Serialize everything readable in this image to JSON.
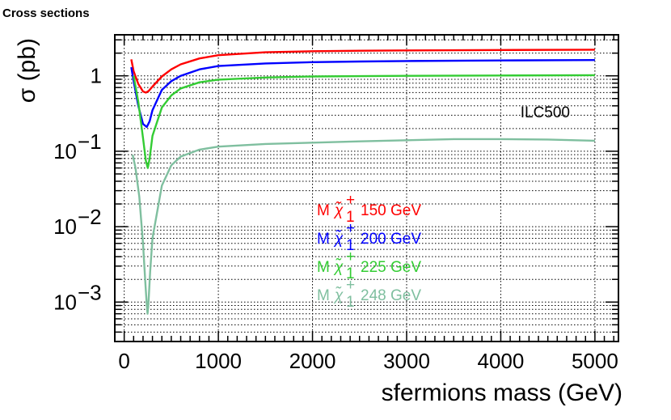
{
  "page": {
    "title": "Cross sections"
  },
  "chart_data": {
    "type": "line",
    "title": "Cross sections",
    "xlabel": "sfermions mass (GeV)",
    "ylabel": "σ (pb)",
    "xlim": [
      -100,
      5250
    ],
    "ylim": [
      0.0003,
      3.5
    ],
    "yscale": "log",
    "grid": true,
    "annotation": "ILC500",
    "x_ticks": [
      0,
      1000,
      2000,
      3000,
      4000,
      5000
    ],
    "y_ticks": [
      {
        "value": 1,
        "base": "1",
        "exp": ""
      },
      {
        "value": 0.1,
        "base": "10",
        "exp": "−1"
      },
      {
        "value": 0.01,
        "base": "10",
        "exp": "−2"
      },
      {
        "value": 0.001,
        "base": "10",
        "exp": "−3"
      }
    ],
    "legend_prefix": "M",
    "legend_symbol": "χ̃",
    "legend_sub": "1",
    "legend_sup": "+",
    "series": [
      {
        "name": "150 GeV",
        "color": "#ff0000",
        "x": [
          75,
          100,
          150,
          200,
          230,
          260,
          300,
          400,
          500,
          600,
          800,
          1000,
          1500,
          2000,
          2500,
          3000,
          4000,
          5000
        ],
        "y": [
          1.65,
          1.15,
          0.78,
          0.62,
          0.6,
          0.63,
          0.72,
          0.98,
          1.22,
          1.42,
          1.7,
          1.88,
          2.05,
          2.12,
          2.15,
          2.17,
          2.2,
          2.22
        ]
      },
      {
        "name": "200 GeV",
        "color": "#0000ff",
        "x": [
          75,
          100,
          150,
          200,
          240,
          270,
          300,
          400,
          500,
          600,
          800,
          1000,
          1500,
          2000,
          2500,
          3000,
          4000,
          5000
        ],
        "y": [
          1.3,
          0.85,
          0.4,
          0.23,
          0.21,
          0.25,
          0.35,
          0.65,
          0.85,
          1.0,
          1.22,
          1.35,
          1.46,
          1.52,
          1.55,
          1.57,
          1.6,
          1.62
        ]
      },
      {
        "name": "225 GeV",
        "color": "#33cc33",
        "x": [
          100,
          150,
          200,
          230,
          250,
          270,
          300,
          400,
          500,
          600,
          800,
          1000,
          1500,
          2000,
          2500,
          3000,
          4000,
          5000
        ],
        "y": [
          1.0,
          0.45,
          0.15,
          0.075,
          0.06,
          0.08,
          0.16,
          0.38,
          0.55,
          0.68,
          0.82,
          0.89,
          0.95,
          0.98,
          0.99,
          1.0,
          1.01,
          1.02
        ]
      },
      {
        "name": "248 GeV",
        "color": "#7fbf9f",
        "x": [
          90,
          120,
          160,
          200,
          225,
          240,
          248,
          256,
          275,
          300,
          400,
          500,
          600,
          800,
          1000,
          1500,
          2000,
          2500,
          3000,
          3500,
          4000,
          4500,
          5000
        ],
        "y": [
          0.09,
          0.06,
          0.025,
          0.006,
          0.0018,
          0.0009,
          0.0007,
          0.0009,
          0.0025,
          0.007,
          0.035,
          0.065,
          0.085,
          0.105,
          0.115,
          0.125,
          0.13,
          0.135,
          0.14,
          0.145,
          0.145,
          0.143,
          0.138
        ]
      }
    ]
  }
}
